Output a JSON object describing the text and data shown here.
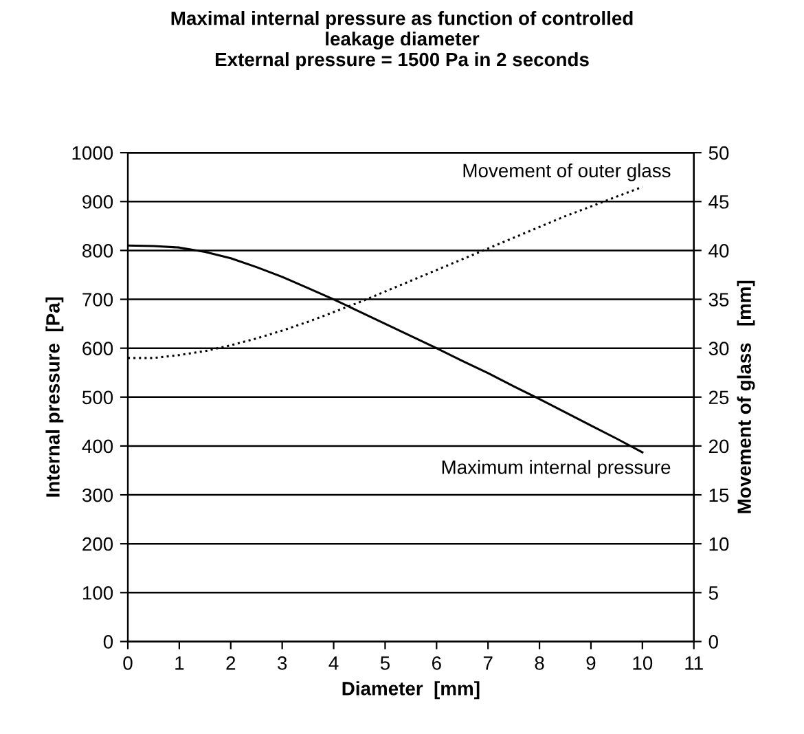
{
  "chart_data": {
    "type": "line",
    "title": "Maximal internal pressure as function of controlled\nleakage diameter\nExternal pressure = 1500 Pa in 2 seconds",
    "xlabel": "Diameter  [mm]",
    "ylabel": "Internal pressure  [Pa]",
    "y2label": "Movement of glass   [mm]",
    "x": [
      0,
      0.5,
      1,
      1.5,
      2,
      2.5,
      3,
      3.5,
      4,
      4.5,
      5,
      5.5,
      6,
      6.5,
      7,
      7.5,
      8,
      8.5,
      9,
      9.5,
      10
    ],
    "series": [
      {
        "name": "Maximum internal pressure",
        "color": "#000000",
        "line_style": "solid",
        "values": [
          810,
          809,
          806,
          797,
          784,
          766,
          746,
          723,
          700,
          675,
          650,
          625,
          600,
          574,
          549,
          522,
          496,
          469,
          442,
          415,
          387
        ]
      },
      {
        "name": "Movement of outer glass",
        "color": "#000000",
        "line_style": "dotted",
        "axis": "y2",
        "values": [
          29,
          29,
          29.3,
          29.7,
          30.3,
          31,
          31.8,
          32.7,
          33.7,
          34.7,
          35.8,
          36.9,
          38,
          39.1,
          40.2,
          41.3,
          42.4,
          43.5,
          44.5,
          45.5,
          46.5
        ]
      }
    ],
    "xlim": [
      0,
      11
    ],
    "xticks": [
      0,
      1,
      2,
      3,
      4,
      5,
      6,
      7,
      8,
      9,
      10,
      11
    ],
    "ylim": [
      0,
      1000
    ],
    "yticks": [
      0,
      100,
      200,
      300,
      400,
      500,
      600,
      700,
      800,
      900,
      1000
    ],
    "y2lim": [
      0,
      50
    ],
    "y2ticks": [
      0,
      5,
      10,
      15,
      20,
      25,
      30,
      35,
      40,
      45,
      50
    ],
    "grid": "y",
    "legend": false
  }
}
